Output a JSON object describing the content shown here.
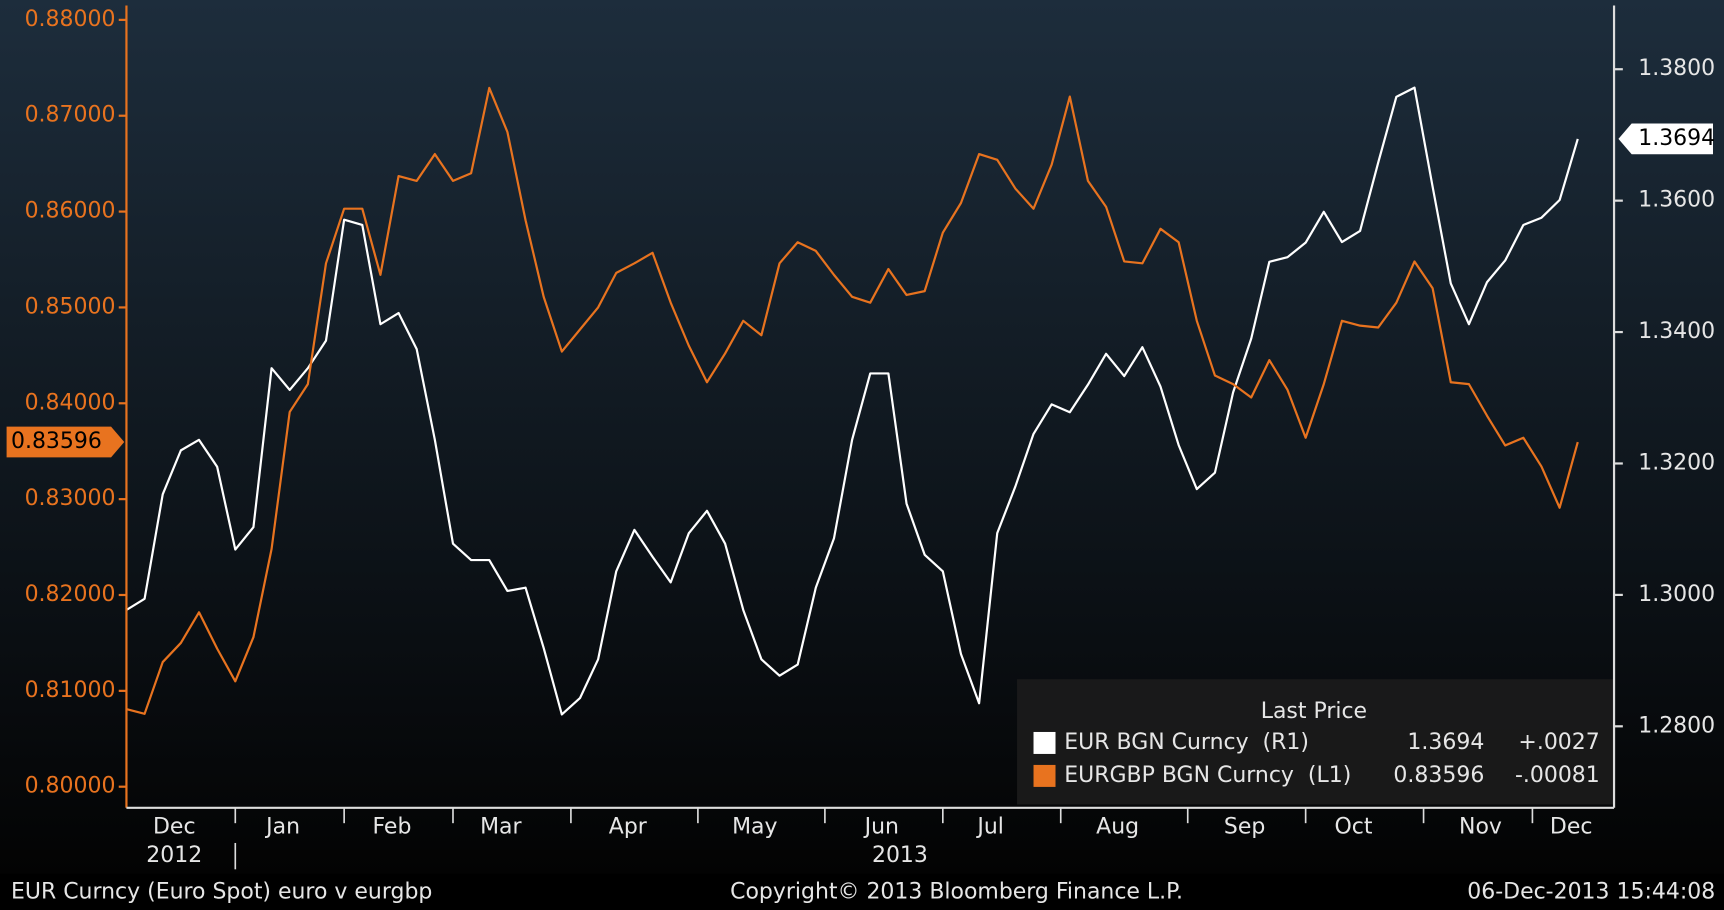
{
  "chart_data": {
    "type": "line",
    "categories": [
      null,
      null,
      null,
      "Dec",
      null,
      null,
      null,
      null,
      null,
      "Jan",
      null,
      null,
      null,
      null,
      null,
      "Feb",
      null,
      null,
      null,
      null,
      null,
      "Mar",
      null,
      null,
      null,
      null,
      null,
      null,
      "Apr",
      null,
      null,
      null,
      null,
      null,
      null,
      "May",
      null,
      null,
      null,
      null,
      null,
      null,
      "Jun",
      null,
      null,
      null,
      null,
      null,
      "Jul",
      null,
      null,
      null,
      null,
      null,
      null,
      "Aug",
      null,
      null,
      null,
      null,
      null,
      null,
      "Sep",
      null,
      null,
      null,
      null,
      null,
      "Oct",
      null,
      null,
      null,
      null,
      null,
      null,
      "Nov",
      null,
      null,
      null,
      null,
      "Dec"
    ],
    "year_labels": [
      null,
      null,
      null,
      "2012",
      null,
      null,
      null,
      null,
      null,
      null,
      null,
      null,
      null,
      null,
      null,
      null,
      null,
      null,
      null,
      null,
      null,
      null,
      null,
      null,
      null,
      null,
      null,
      null,
      null,
      null,
      null,
      null,
      null,
      null,
      null,
      null,
      null,
      null,
      null,
      null,
      null,
      null,
      null,
      "2013",
      null,
      null,
      null,
      null,
      null,
      null,
      null,
      null,
      null,
      null,
      null,
      null,
      null,
      null,
      null,
      null,
      null,
      null,
      null,
      null,
      null,
      null,
      null,
      null,
      null,
      null,
      null,
      null,
      null,
      null,
      null,
      null,
      null,
      null,
      null,
      null,
      null
    ],
    "ylim": [
      0.7978,
      0.8815
    ],
    "yticks": [
      {
        "value": 0.8,
        "label": "0.80000"
      },
      {
        "value": 0.81,
        "label": "0.81000"
      },
      {
        "value": 0.82,
        "label": "0.82000"
      },
      {
        "value": 0.83,
        "label": "0.83000"
      },
      {
        "value": 0.84,
        "label": "0.84000"
      },
      {
        "value": 0.85,
        "label": "0.85000"
      },
      {
        "value": 0.86,
        "label": "0.86000"
      },
      {
        "value": 0.87,
        "label": "0.87000"
      },
      {
        "value": 0.88,
        "label": "0.88000"
      }
    ],
    "y2lim": [
      1.2676,
      1.3897
    ],
    "y2ticks": [
      {
        "value": 1.28,
        "label": "1.2800"
      },
      {
        "value": 1.3,
        "label": "1.3000"
      },
      {
        "value": 1.32,
        "label": "1.3200"
      },
      {
        "value": 1.34,
        "label": "1.3400"
      },
      {
        "value": 1.36,
        "label": "1.3600"
      },
      {
        "value": 1.38,
        "label": "1.3800"
      }
    ],
    "grid": false,
    "legend_title": "Last Price",
    "series": [
      {
        "name": "EUR BGN Curncy  (R1)",
        "color": "#ffffff",
        "axis": "y2",
        "change": "+.0027",
        "values": [
          1.2977,
          1.2994,
          1.3153,
          1.322,
          1.3236,
          1.3195,
          1.3069,
          1.3103,
          1.3345,
          1.3312,
          1.3345,
          1.3387,
          1.3571,
          1.3563,
          1.3412,
          1.3429,
          1.3374,
          1.3236,
          1.3078,
          1.3053,
          1.3053,
          1.3006,
          1.3011,
          1.2919,
          1.2818,
          1.2843,
          1.2902,
          1.3036,
          1.3099,
          1.3058,
          1.3019,
          1.3094,
          1.3128,
          1.3078,
          1.2977,
          1.2902,
          1.2877,
          1.2894,
          1.3011,
          1.3086,
          1.3236,
          1.3337,
          1.3337,
          1.3139,
          1.3061,
          1.3036,
          1.291,
          1.2835,
          1.3094,
          1.3165,
          1.3245,
          1.329,
          1.3278,
          1.332,
          1.3367,
          1.3333,
          1.3377,
          1.3317,
          1.3228,
          1.3161,
          1.3186,
          1.3308,
          1.339,
          1.3507,
          1.3514,
          1.3536,
          1.3583,
          1.3537,
          1.3554,
          1.3658,
          1.3758,
          1.3772,
          1.3621,
          1.3474,
          1.3412,
          1.3476,
          1.3509,
          1.3563,
          1.3574,
          1.3601,
          1.3694
        ]
      },
      {
        "name": "EURGBP BGN Curncy  (L1)",
        "color": "#e8731f",
        "change": "-.00081",
        "values": [
          0.8081,
          0.8076,
          0.813,
          0.815,
          0.8182,
          0.8144,
          0.811,
          0.8156,
          0.8248,
          0.8391,
          0.842,
          0.8546,
          0.8603,
          0.8603,
          0.8534,
          0.8637,
          0.8632,
          0.866,
          0.8632,
          0.864,
          0.8729,
          0.8683,
          0.8591,
          0.8511,
          0.8454,
          0.8477,
          0.85,
          0.8536,
          0.8546,
          0.8557,
          0.8505,
          0.846,
          0.8422,
          0.8452,
          0.8486,
          0.8471,
          0.8546,
          0.8568,
          0.8559,
          0.8534,
          0.8511,
          0.8505,
          0.854,
          0.8513,
          0.8517,
          0.8578,
          0.8609,
          0.866,
          0.8654,
          0.8624,
          0.8603,
          0.8649,
          0.872,
          0.8632,
          0.8605,
          0.8548,
          0.8546,
          0.8582,
          0.8568,
          0.8486,
          0.8429,
          0.842,
          0.8406,
          0.8445,
          0.8414,
          0.8364,
          0.842,
          0.8486,
          0.8481,
          0.8479,
          0.8505,
          0.8548,
          0.852,
          0.8422,
          0.842,
          0.8387,
          0.8356,
          0.8364,
          0.8334,
          0.8291,
          0.83596
        ]
      }
    ],
    "footer_left": "EUR Curncy (Euro Spot) euro v eurgbp",
    "copyright": "Copyright© 2013 Bloomberg Finance L.P.",
    "timestamp": "06-Dec-2013 15:44:08"
  }
}
